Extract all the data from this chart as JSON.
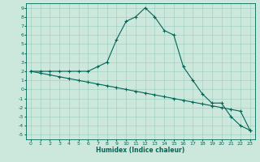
{
  "xlabel": "Humidex (Indice chaleur)",
  "background_color": "#cce8dd",
  "grid_color": "#99ccbb",
  "line_color": "#006655",
  "xlim": [
    -0.5,
    23.5
  ],
  "ylim": [
    -5.5,
    9.5
  ],
  "xticks": [
    0,
    1,
    2,
    3,
    4,
    5,
    6,
    7,
    8,
    9,
    10,
    11,
    12,
    13,
    14,
    15,
    16,
    17,
    18,
    19,
    20,
    21,
    22,
    23
  ],
  "yticks": [
    -5,
    -4,
    -3,
    -2,
    -1,
    0,
    1,
    2,
    3,
    4,
    5,
    6,
    7,
    8,
    9
  ],
  "line1_x": [
    0,
    1,
    2,
    3,
    4,
    5,
    6,
    7,
    8,
    9,
    10,
    11,
    12,
    13,
    14,
    15,
    16,
    17,
    18,
    19,
    20,
    21,
    22,
    23
  ],
  "line1_y": [
    2,
    2,
    2,
    2,
    2,
    2,
    2,
    2.5,
    3,
    5.5,
    7.5,
    8,
    9,
    8,
    6.5,
    6,
    2.5,
    1,
    -0.5,
    -1.5,
    -1.5,
    -3,
    -4,
    -4.5
  ],
  "line2_x": [
    0,
    1,
    2,
    3,
    4,
    5,
    6,
    7,
    8,
    9,
    10,
    11,
    12,
    13,
    14,
    15,
    16,
    17,
    18,
    19,
    20,
    21,
    22,
    23
  ],
  "line2_y": [
    2,
    1.8,
    1.6,
    1.4,
    1.2,
    1.0,
    0.8,
    0.6,
    0.4,
    0.2,
    0.0,
    -0.2,
    -0.4,
    -0.6,
    -0.8,
    -1.0,
    -1.2,
    -1.4,
    -1.6,
    -1.8,
    -2.0,
    -2.2,
    -2.4,
    -4.5
  ],
  "xlabel_fontsize": 5.5,
  "tick_fontsize": 4.5,
  "marker_size": 3,
  "linewidth": 0.8
}
